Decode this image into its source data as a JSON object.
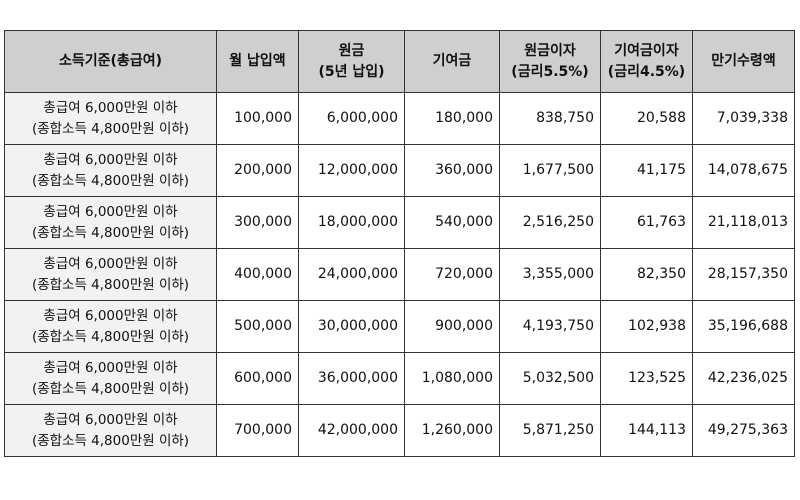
{
  "table": {
    "headers": [
      [
        "소득기준(총급여)"
      ],
      [
        "월 납입액"
      ],
      [
        "원금",
        "(5년 납입)"
      ],
      [
        "기여금"
      ],
      [
        "원금이자",
        "(금리5.5%)"
      ],
      [
        "기여금이자",
        "(금리4.5%)"
      ],
      [
        "만기수령액"
      ]
    ],
    "rows": [
      {
        "criteria_1": "총급여 6,000만원 이하",
        "criteria_2": "(종합소득 4,800만원 이하)",
        "monthly": "100,000",
        "principal": "6,000,000",
        "contribution": "180,000",
        "principal_interest": "838,750",
        "contribution_interest": "20,588",
        "maturity": "7,039,338"
      },
      {
        "criteria_1": "총급여 6,000만원 이하",
        "criteria_2": "(종합소득 4,800만원 이하)",
        "monthly": "200,000",
        "principal": "12,000,000",
        "contribution": "360,000",
        "principal_interest": "1,677,500",
        "contribution_interest": "41,175",
        "maturity": "14,078,675"
      },
      {
        "criteria_1": "총급여 6,000만원 이하",
        "criteria_2": "(종합소득 4,800만원 이하)",
        "monthly": "300,000",
        "principal": "18,000,000",
        "contribution": "540,000",
        "principal_interest": "2,516,250",
        "contribution_interest": "61,763",
        "maturity": "21,118,013"
      },
      {
        "criteria_1": "총급여 6,000만원 이하",
        "criteria_2": "(종합소득 4,800만원 이하)",
        "monthly": "400,000",
        "principal": "24,000,000",
        "contribution": "720,000",
        "principal_interest": "3,355,000",
        "contribution_interest": "82,350",
        "maturity": "28,157,350"
      },
      {
        "criteria_1": "총급여 6,000만원 이하",
        "criteria_2": "(종합소득 4,800만원 이하)",
        "monthly": "500,000",
        "principal": "30,000,000",
        "contribution": "900,000",
        "principal_interest": "4,193,750",
        "contribution_interest": "102,938",
        "maturity": "35,196,688"
      },
      {
        "criteria_1": "총급여 6,000만원 이하",
        "criteria_2": "(종합소득 4,800만원 이하)",
        "monthly": "600,000",
        "principal": "36,000,000",
        "contribution": "1,080,000",
        "principal_interest": "5,032,500",
        "contribution_interest": "123,525",
        "maturity": "42,236,025"
      },
      {
        "criteria_1": "총급여 6,000만원 이하",
        "criteria_2": "(종합소득 4,800만원 이하)",
        "monthly": "700,000",
        "principal": "42,000,000",
        "contribution": "1,260,000",
        "principal_interest": "5,871,250",
        "contribution_interest": "144,113",
        "maturity": "49,275,363"
      }
    ]
  },
  "colors": {
    "header_bg": "#d0cece",
    "criteria_bg": "#f2f2f2",
    "border": "#333333"
  }
}
